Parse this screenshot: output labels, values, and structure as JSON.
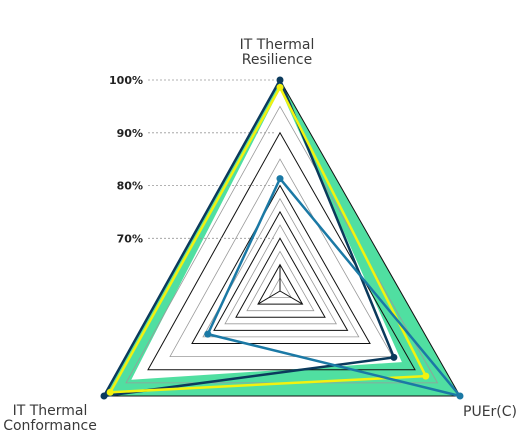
{
  "chart_data": {
    "type": "radar",
    "axes": [
      {
        "label": "IT Thermal\nResilience"
      },
      {
        "label": "IT Thermal\nConformance"
      },
      {
        "label": "PUEr(C)"
      }
    ],
    "radial_ticks": [
      {
        "value": 70,
        "label": "70%"
      },
      {
        "value": 80,
        "label": "80%"
      },
      {
        "value": 90,
        "label": "90%"
      },
      {
        "value": 100,
        "label": "100%"
      }
    ],
    "rlim": [
      60,
      100
    ],
    "grid": true,
    "band": {
      "upper": [
        100,
        100,
        100
      ],
      "lower": [
        98.3,
        93.8,
        87.1
      ]
    },
    "series": [
      {
        "color": "#0b3a5c",
        "values": [
          100,
          100,
          85.3
        ]
      },
      {
        "color": "#f2f20f",
        "values": [
          98.6,
          98.6,
          92.4
        ]
      },
      {
        "color": "#1b79a5",
        "values": [
          81.3,
          76.4,
          100
        ]
      }
    ],
    "colors": {
      "band": "#3ddc97",
      "grid_dark": "#111111",
      "grid_light": "#9a9a9a"
    }
  }
}
